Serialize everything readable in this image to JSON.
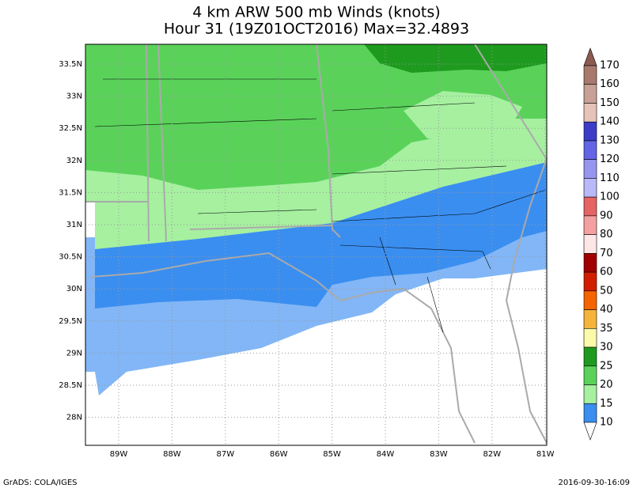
{
  "header": {
    "title": "4 km ARW 500 mb Winds (knots)",
    "subtitle": "Hour 31 (19Z01OCT2016) Max=32.4893"
  },
  "map": {
    "lat_labels": [
      "33.5N",
      "33N",
      "32.5N",
      "32N",
      "31.5N",
      "31N",
      "30.5N",
      "30N",
      "29.5N",
      "29N",
      "28.5N",
      "28N"
    ],
    "lon_labels": [
      "89W",
      "88W",
      "87W",
      "86W",
      "85W",
      "84W",
      "83W",
      "82W",
      "81W"
    ]
  },
  "colorbar": {
    "levels": [
      170,
      160,
      150,
      140,
      130,
      120,
      110,
      100,
      90,
      80,
      70,
      60,
      50,
      40,
      35,
      30,
      25,
      20,
      15,
      10
    ],
    "colors": [
      "#8c5a50",
      "#a87a6e",
      "#c8a096",
      "#e6c3b9",
      "#3c3cc8",
      "#6464e6",
      "#9696f0",
      "#b9b9fa",
      "#e66464",
      "#f5a0a0",
      "#fde6e6",
      "#a00000",
      "#d21e00",
      "#f56400",
      "#f5b43c",
      "#fafaaa",
      "#1e9b1e",
      "#5ad25a",
      "#a6f0a0",
      "#3a8ef0",
      "#82b6f6",
      "#ffffff"
    ]
  },
  "footer": {
    "left": "GrADS: COLA/IGES",
    "right": "2016-09-30-16:09"
  }
}
